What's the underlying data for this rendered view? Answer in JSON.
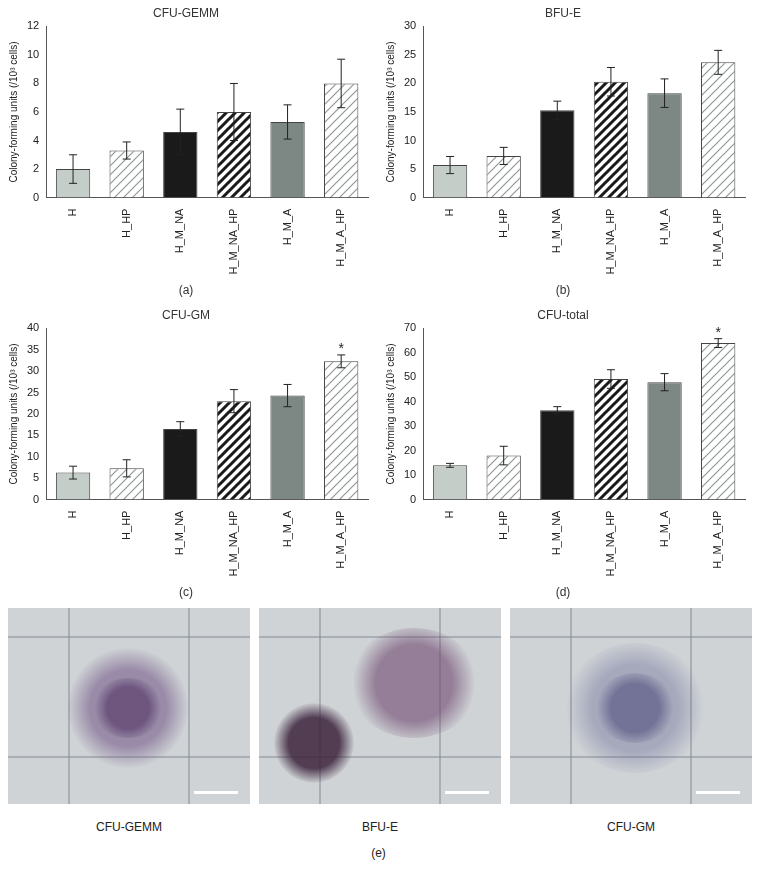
{
  "chart_data": [
    {
      "type": "bar",
      "title": "CFU-GEMM",
      "panel": "(a)",
      "y_label": "Colony-forming units (/10³ cells)",
      "categories": [
        "H",
        "H_HP",
        "H_M_NA",
        "H_M_NA_HP",
        "H_M_A",
        "H_M_A_HP"
      ],
      "values": [
        2.0,
        3.3,
        4.6,
        6.0,
        5.3,
        8.0
      ],
      "errors": [
        1.0,
        0.6,
        1.6,
        2.0,
        1.2,
        1.7
      ],
      "colors": [
        "#c5cdc9",
        "#c5cdc9",
        "#1a1a1a",
        "#1a1a1a",
        "#7d8783",
        "#b9c1bd"
      ],
      "ylim": [
        0,
        12
      ],
      "yticks": [
        0,
        2,
        4,
        6,
        8,
        10,
        12
      ],
      "grid": false
    },
    {
      "type": "bar",
      "title": "BFU-E",
      "panel": "(b)",
      "y_label": "Colony-forming units (/10³ cells)",
      "categories": [
        "H",
        "H_HP",
        "H_M_NA",
        "H_M_NA_HP",
        "H_M_A",
        "H_M_A_HP"
      ],
      "values": [
        5.7,
        7.3,
        15.3,
        20.3,
        18.3,
        23.7
      ],
      "errors": [
        1.5,
        1.5,
        1.6,
        2.5,
        2.5,
        2.1
      ],
      "colors": [
        "#c5cdc9",
        "#c5cdc9",
        "#1a1a1a",
        "#1a1a1a",
        "#7d8783",
        "#b9c1bd"
      ],
      "ylim": [
        0,
        30
      ],
      "yticks": [
        0,
        5,
        10,
        15,
        20,
        25,
        30
      ],
      "grid": false
    },
    {
      "type": "bar",
      "title": "CFU-GM",
      "panel": "(c)",
      "y_label": "Colony-forming units (/10³ cells)",
      "categories": [
        "H",
        "H_HP",
        "H_M_NA",
        "H_M_NA_HP",
        "H_M_A",
        "H_M_A_HP"
      ],
      "values": [
        6.3,
        7.3,
        16.5,
        23.0,
        24.3,
        32.3
      ],
      "errors": [
        1.5,
        2.0,
        1.7,
        2.7,
        2.6,
        1.5
      ],
      "colors": [
        "#c5cdc9",
        "#c5cdc9",
        "#1a1a1a",
        "#1a1a1a",
        "#7d8783",
        "#b9c1bd"
      ],
      "annotations": [
        {
          "category": "H_M_A_HP",
          "text": "*"
        }
      ],
      "ylim": [
        0,
        40
      ],
      "yticks": [
        0,
        5,
        10,
        15,
        20,
        25,
        30,
        35,
        40
      ],
      "grid": false
    },
    {
      "type": "bar",
      "title": "CFU-total",
      "panel": "(d)",
      "y_label": "Colony-forming units (/10³ cells)",
      "categories": [
        "H",
        "H_HP",
        "H_M_NA",
        "H_M_NA_HP",
        "H_M_A",
        "H_M_A_HP"
      ],
      "values": [
        14.0,
        18.0,
        36.5,
        49.3,
        48.0,
        64.0
      ],
      "errors": [
        0.8,
        3.8,
        1.5,
        3.8,
        3.5,
        1.8
      ],
      "colors": [
        "#c5cdc9",
        "#c5cdc9",
        "#1a1a1a",
        "#1a1a1a",
        "#7d8783",
        "#b9c1bd"
      ],
      "annotations": [
        {
          "category": "H_M_A_HP",
          "text": "*"
        }
      ],
      "ylim": [
        0,
        70
      ],
      "yticks": [
        0,
        10,
        20,
        30,
        40,
        50,
        60,
        70
      ],
      "grid": false
    }
  ],
  "images": {
    "panel": "(e)",
    "captions": [
      "CFU-GEMM",
      "BFU-E",
      "CFU-GM"
    ]
  }
}
